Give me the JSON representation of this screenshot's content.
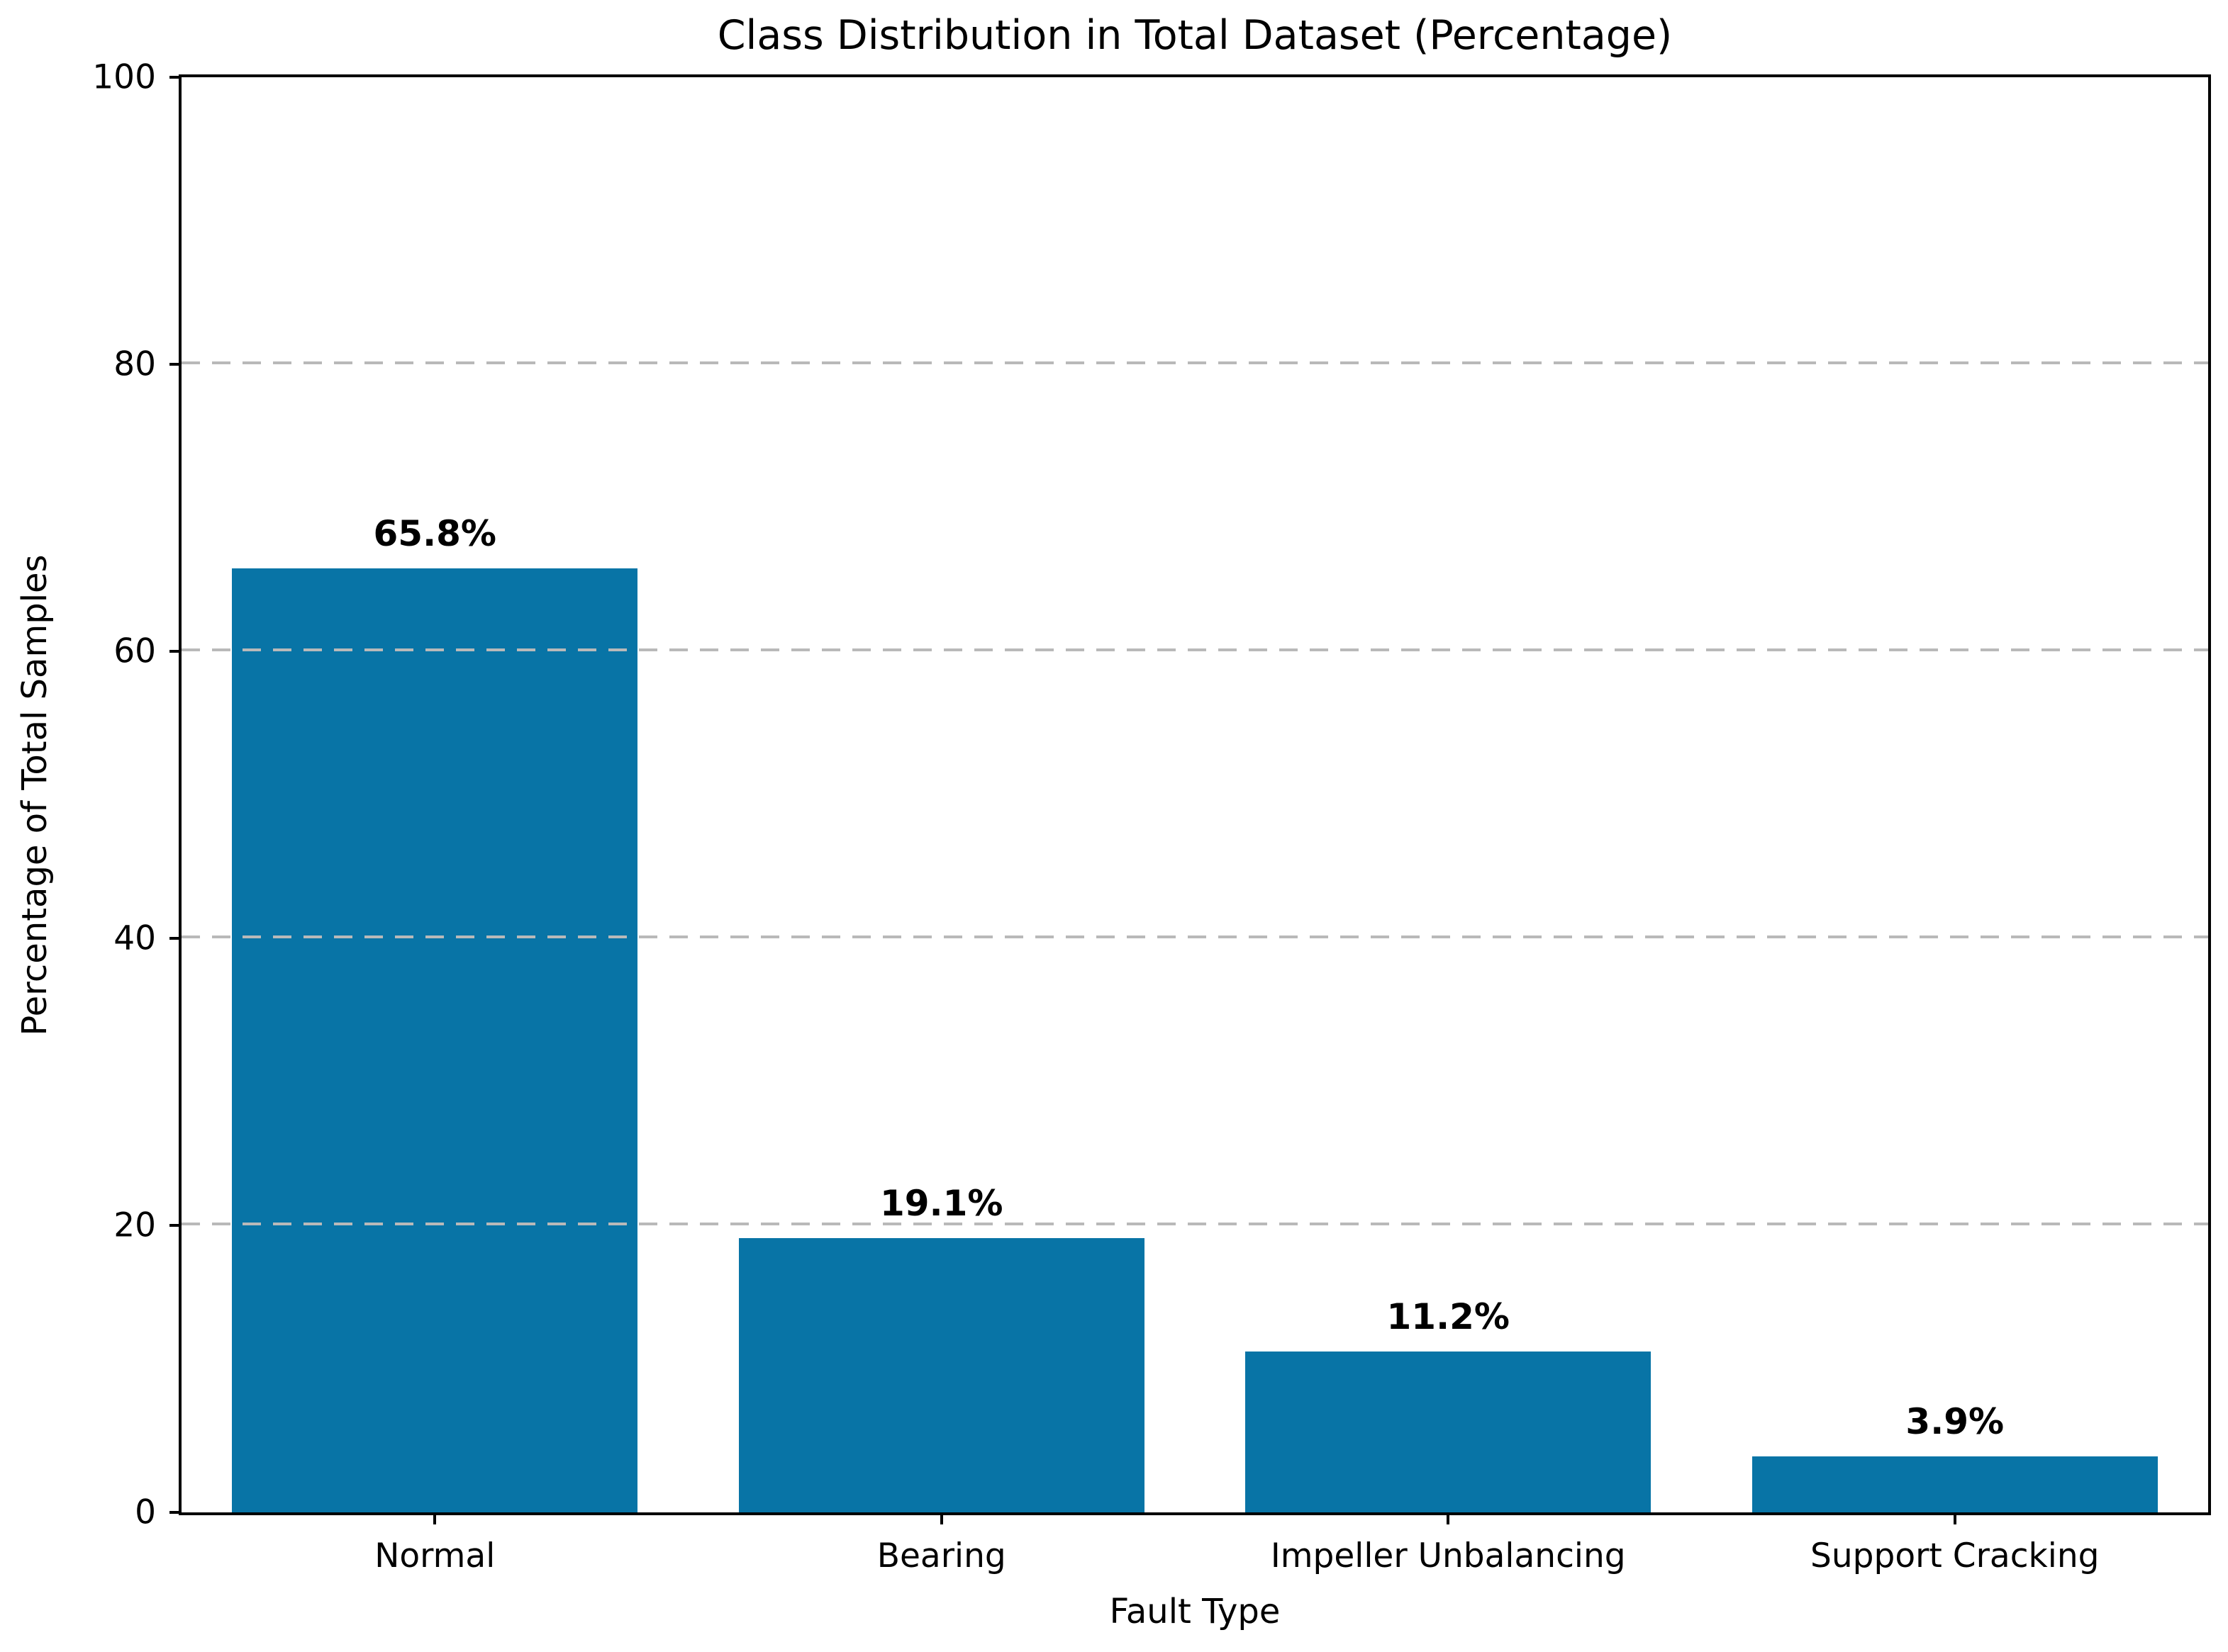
{
  "chart_data": {
    "type": "bar",
    "title": "Class Distribution in Total Dataset (Percentage)",
    "xlabel": "Fault Type",
    "ylabel": "Percentage of Total Samples",
    "categories": [
      "Normal",
      "Bearing",
      "Impeller Unbalancing",
      "Support Cracking"
    ],
    "values": [
      65.8,
      19.1,
      11.2,
      3.9
    ],
    "bar_value_labels": [
      "65.8%",
      "19.1%",
      "11.2%",
      "3.9%"
    ],
    "ylim": [
      0,
      100
    ],
    "yticks": [
      0,
      20,
      40,
      60,
      80,
      100
    ],
    "gridlines": [
      20,
      40,
      60,
      80
    ],
    "grid_style": "horizontal dashed, drawn above bars",
    "legend": "none",
    "bar_color": "#0874a6",
    "gridline_color": "#b9b9b9",
    "spine_color": "#000000",
    "background_color": "#ffffff",
    "bar_width_fraction": 0.8
  }
}
